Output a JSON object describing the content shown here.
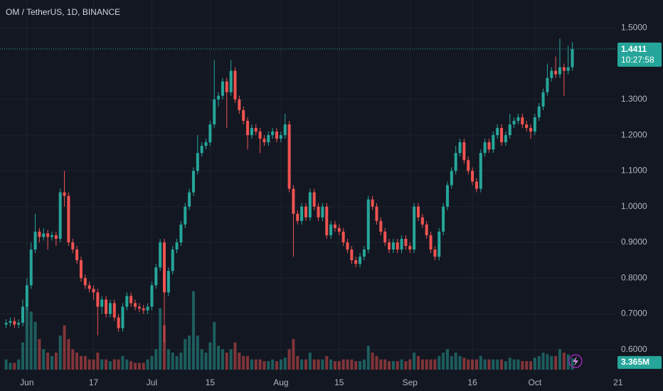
{
  "chart_data": {
    "type": "candlestick",
    "title": "OM / TetherUS, 1D, BINANCE",
    "up_color": "#26a69a",
    "down_color": "#ef5350",
    "xlim": [
      -1.47,
      146.5
    ],
    "xticks": [
      {
        "value": 5,
        "label": "Jun"
      },
      {
        "value": 21,
        "label": "17"
      },
      {
        "value": 35,
        "label": "Jul"
      },
      {
        "value": 49,
        "label": "15"
      },
      {
        "value": 66,
        "label": "Aug"
      },
      {
        "value": 80,
        "label": "15"
      },
      {
        "value": 97,
        "label": "Sep"
      },
      {
        "value": 112,
        "label": "16"
      },
      {
        "value": 127,
        "label": "Oct"
      },
      {
        "value": 147,
        "label": "21"
      }
    ],
    "ylim": [
      0.528,
      1.578
    ],
    "yticks": [
      {
        "value": 0.6,
        "label": "0.6000"
      },
      {
        "value": 0.7,
        "label": "0.7000"
      },
      {
        "value": 0.8,
        "label": "0.8000"
      },
      {
        "value": 0.9,
        "label": "0.9000"
      },
      {
        "value": 1.0,
        "label": "1.0000"
      },
      {
        "value": 1.1,
        "label": "1.1000"
      },
      {
        "value": 1.2,
        "label": "1.2000"
      },
      {
        "value": 1.3,
        "label": "1.3000"
      },
      {
        "value": 1.5,
        "label": "1.5000"
      }
    ],
    "grid": true,
    "open": [
      0.67,
      0.675,
      0.68,
      0.67,
      0.675,
      0.72,
      0.78,
      0.88,
      0.93,
      0.915,
      0.925,
      0.915,
      0.92,
      0.91,
      1.04,
      1.03,
      0.9,
      0.88,
      0.85,
      0.8,
      0.78,
      0.77,
      0.76,
      0.72,
      0.74,
      0.7,
      0.73,
      0.69,
      0.66,
      0.72,
      0.75,
      0.73,
      0.72,
      0.715,
      0.71,
      0.72,
      0.78,
      0.83,
      0.9,
      0.76,
      0.82,
      0.88,
      0.9,
      0.95,
      1.0,
      1.04,
      1.1,
      1.15,
      1.17,
      1.18,
      1.23,
      1.3,
      1.31,
      1.35,
      1.32,
      1.38,
      1.3,
      1.27,
      1.24,
      1.2,
      1.22,
      1.21,
      1.19,
      1.18,
      1.2,
      1.21,
      1.19,
      1.2,
      1.23,
      1.05,
      0.98,
      0.96,
      1.0,
      0.97,
      1.04,
      1.0,
      0.97,
      1.0,
      0.92,
      0.95,
      0.94,
      0.93,
      0.9,
      0.88,
      0.85,
      0.84,
      0.86,
      0.88,
      1.02,
      1.0,
      0.96,
      0.93,
      0.9,
      0.88,
      0.9,
      0.88,
      0.91,
      0.89,
      0.88,
      1.0,
      0.97,
      0.95,
      0.92,
      0.88,
      0.86,
      0.93,
      1.0,
      1.06,
      1.1,
      1.15,
      1.18,
      1.13,
      1.1,
      1.07,
      1.05,
      1.15,
      1.18,
      1.16,
      1.2,
      1.22,
      1.18,
      1.2,
      1.23,
      1.24,
      1.25,
      1.23,
      1.22,
      1.21,
      1.25,
      1.28,
      1.32,
      1.36,
      1.38,
      1.37,
      1.39,
      1.38,
      1.39
    ],
    "high": [
      0.685,
      0.69,
      0.69,
      0.685,
      0.74,
      0.8,
      0.9,
      0.98,
      0.94,
      0.94,
      0.935,
      0.93,
      0.93,
      1.05,
      1.1,
      1.04,
      0.91,
      0.89,
      0.86,
      0.81,
      0.79,
      0.78,
      0.77,
      0.75,
      0.75,
      0.74,
      0.74,
      0.7,
      0.73,
      0.76,
      0.76,
      0.74,
      0.73,
      0.725,
      0.73,
      0.79,
      0.84,
      0.91,
      0.91,
      0.83,
      0.89,
      0.91,
      0.96,
      1.01,
      1.05,
      1.11,
      1.2,
      1.18,
      1.19,
      1.24,
      1.41,
      1.32,
      1.36,
      1.36,
      1.41,
      1.39,
      1.31,
      1.28,
      1.25,
      1.23,
      1.23,
      1.22,
      1.2,
      1.21,
      1.22,
      1.22,
      1.21,
      1.26,
      1.24,
      1.06,
      0.99,
      1.01,
      1.01,
      1.05,
      1.05,
      1.01,
      1.01,
      1.01,
      0.96,
      0.96,
      0.95,
      0.94,
      0.91,
      0.89,
      0.86,
      0.87,
      0.89,
      1.03,
      1.03,
      1.01,
      0.97,
      0.94,
      0.91,
      0.91,
      0.91,
      0.92,
      0.92,
      0.9,
      1.01,
      1.01,
      0.98,
      0.96,
      0.93,
      0.89,
      0.94,
      1.01,
      1.07,
      1.11,
      1.17,
      1.19,
      1.19,
      1.14,
      1.11,
      1.08,
      1.16,
      1.19,
      1.19,
      1.21,
      1.23,
      1.23,
      1.21,
      1.26,
      1.25,
      1.26,
      1.26,
      1.24,
      1.23,
      1.26,
      1.29,
      1.33,
      1.4,
      1.39,
      1.42,
      1.47,
      1.4,
      1.45,
      1.46
    ],
    "low": [
      0.66,
      0.665,
      0.66,
      0.66,
      0.665,
      0.71,
      0.77,
      0.87,
      0.9,
      0.905,
      0.88,
      0.905,
      0.89,
      0.9,
      1.0,
      0.89,
      0.87,
      0.84,
      0.79,
      0.77,
      0.76,
      0.74,
      0.64,
      0.7,
      0.69,
      0.69,
      0.68,
      0.65,
      0.65,
      0.71,
      0.72,
      0.71,
      0.705,
      0.7,
      0.7,
      0.71,
      0.77,
      0.82,
      0.62,
      0.75,
      0.81,
      0.87,
      0.89,
      0.94,
      0.99,
      1.03,
      1.09,
      1.14,
      1.16,
      1.17,
      1.22,
      1.28,
      1.3,
      1.22,
      1.31,
      1.29,
      1.26,
      1.23,
      1.16,
      1.19,
      1.2,
      1.15,
      1.17,
      1.17,
      1.19,
      1.18,
      1.18,
      1.19,
      1.04,
      0.86,
      0.95,
      0.95,
      0.96,
      0.96,
      0.99,
      0.96,
      0.96,
      0.91,
      0.91,
      0.93,
      0.92,
      0.89,
      0.87,
      0.84,
      0.83,
      0.83,
      0.85,
      0.87,
      0.99,
      0.95,
      0.92,
      0.89,
      0.87,
      0.87,
      0.87,
      0.87,
      0.88,
      0.87,
      0.87,
      0.96,
      0.94,
      0.91,
      0.87,
      0.85,
      0.85,
      0.92,
      0.99,
      1.05,
      1.09,
      1.14,
      1.12,
      1.09,
      1.06,
      1.04,
      1.04,
      1.14,
      1.15,
      1.15,
      1.19,
      1.17,
      1.17,
      1.19,
      1.22,
      1.23,
      1.22,
      1.21,
      1.19,
      1.2,
      1.24,
      1.27,
      1.31,
      1.35,
      1.36,
      1.36,
      1.31,
      1.37,
      1.38
    ],
    "close": [
      0.675,
      0.68,
      0.67,
      0.675,
      0.72,
      0.78,
      0.88,
      0.93,
      0.915,
      0.925,
      0.915,
      0.92,
      0.91,
      1.04,
      1.03,
      0.9,
      0.88,
      0.85,
      0.8,
      0.78,
      0.77,
      0.76,
      0.72,
      0.74,
      0.7,
      0.73,
      0.69,
      0.66,
      0.72,
      0.75,
      0.73,
      0.72,
      0.715,
      0.71,
      0.72,
      0.78,
      0.83,
      0.9,
      0.76,
      0.82,
      0.88,
      0.9,
      0.95,
      1.0,
      1.04,
      1.1,
      1.15,
      1.17,
      1.18,
      1.23,
      1.3,
      1.31,
      1.35,
      1.32,
      1.38,
      1.3,
      1.27,
      1.24,
      1.2,
      1.22,
      1.21,
      1.19,
      1.18,
      1.2,
      1.21,
      1.19,
      1.2,
      1.23,
      1.05,
      0.98,
      0.96,
      1.0,
      0.97,
      1.04,
      1.0,
      0.97,
      1.0,
      0.92,
      0.95,
      0.94,
      0.93,
      0.9,
      0.88,
      0.85,
      0.84,
      0.86,
      0.88,
      1.02,
      1.0,
      0.96,
      0.93,
      0.9,
      0.88,
      0.9,
      0.88,
      0.91,
      0.89,
      0.88,
      1.0,
      0.97,
      0.95,
      0.92,
      0.88,
      0.86,
      0.93,
      1.0,
      1.06,
      1.1,
      1.15,
      1.18,
      1.13,
      1.1,
      1.07,
      1.05,
      1.15,
      1.18,
      1.16,
      1.2,
      1.22,
      1.18,
      1.2,
      1.23,
      1.24,
      1.25,
      1.23,
      1.22,
      1.21,
      1.25,
      1.28,
      1.32,
      1.36,
      1.38,
      1.37,
      1.39,
      1.38,
      1.39,
      1.4411
    ],
    "last_price_label": "1.4411",
    "countdown": "10:27:58",
    "volume_lim": [
      0,
      30
    ],
    "volume": [
      3,
      2,
      2,
      3,
      8,
      20,
      17,
      14,
      9,
      6,
      5,
      4,
      5,
      10,
      13,
      9,
      6,
      5,
      4,
      4,
      3,
      3,
      5,
      3,
      3,
      2.5,
      3,
      3,
      4,
      3,
      2.5,
      2,
      2,
      2,
      3,
      4,
      6,
      18,
      13,
      6,
      5,
      4,
      5,
      9,
      10,
      23,
      10,
      6,
      5,
      8,
      14,
      7,
      6,
      5,
      6,
      8,
      5,
      4,
      4,
      3,
      3,
      3,
      2.5,
      2.5,
      3,
      2.5,
      3,
      3.5,
      6,
      9,
      4,
      3,
      3,
      5,
      3,
      3,
      3,
      4,
      3,
      2.5,
      2.5,
      3,
      3,
      3,
      2.5,
      2.5,
      3,
      7,
      5,
      4,
      3,
      3,
      2.5,
      2.5,
      2.5,
      3,
      2.5,
      3,
      5,
      4,
      3,
      3,
      3,
      3,
      4,
      5,
      6,
      4,
      5,
      4,
      3.5,
      3,
      3,
      3,
      4,
      3,
      3,
      3,
      3,
      3,
      2.5,
      3.5,
      3,
      3,
      2.5,
      2.5,
      2.5,
      3.5,
      4,
      5,
      4.5,
      4,
      4,
      6,
      5,
      4.5,
      3.365
    ],
    "last_volume_label": "3.365M"
  }
}
